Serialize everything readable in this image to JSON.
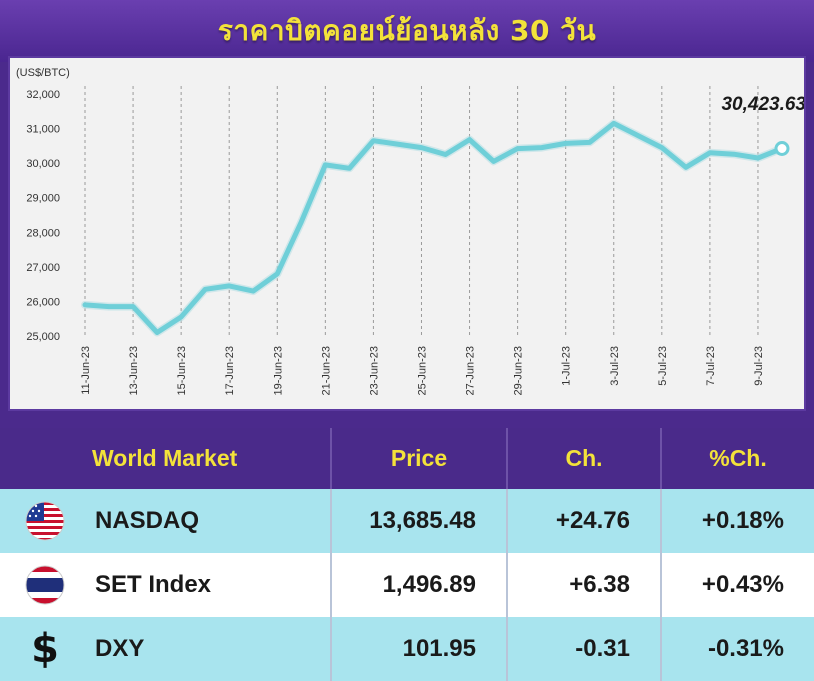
{
  "title": "ราคาบิตคอยน์ย้อนหลัง 30 วัน",
  "chart_data": {
    "type": "line",
    "unit_label": "(US$/BTC)",
    "x": [
      "11-Jun-23",
      "12-Jun-23",
      "13-Jun-23",
      "14-Jun-23",
      "15-Jun-23",
      "16-Jun-23",
      "17-Jun-23",
      "18-Jun-23",
      "19-Jun-23",
      "20-Jun-23",
      "21-Jun-23",
      "22-Jun-23",
      "23-Jun-23",
      "24-Jun-23",
      "25-Jun-23",
      "26-Jun-23",
      "27-Jun-23",
      "28-Jun-23",
      "29-Jun-23",
      "30-Jun-23",
      "1-Jul-23",
      "2-Jul-23",
      "3-Jul-23",
      "4-Jul-23",
      "5-Jul-23",
      "6-Jul-23",
      "7-Jul-23",
      "8-Jul-23",
      "9-Jul-23",
      "10-Jul-23"
    ],
    "x_tick_labels": [
      "11-Jun-23",
      "13-Jun-23",
      "15-Jun-23",
      "17-Jun-23",
      "19-Jun-23",
      "21-Jun-23",
      "23-Jun-23",
      "25-Jun-23",
      "27-Jun-23",
      "29-Jun-23",
      "1-Jul-23",
      "3-Jul-23",
      "5-Jul-23",
      "7-Jul-23",
      "9-Jul-23"
    ],
    "y": [
      25900,
      25850,
      25850,
      25100,
      25550,
      26350,
      26450,
      26300,
      26800,
      28300,
      29950,
      29850,
      30650,
      30550,
      30450,
      30250,
      30680,
      30050,
      30420,
      30450,
      30570,
      30600,
      31150,
      30800,
      30450,
      29880,
      30300,
      30260,
      30150,
      30423.63
    ],
    "ylim": [
      25000,
      32000
    ],
    "yticks": [
      25000,
      26000,
      27000,
      28000,
      29000,
      30000,
      31000,
      32000
    ],
    "ytick_labels": [
      "25,000",
      "26,000",
      "27,000",
      "28,000",
      "29,000",
      "30,000",
      "31,000",
      "32,000"
    ],
    "last_value_label": "30,423.63",
    "line_color": "#6fcfd8",
    "grid": "vertical-dashed"
  },
  "table": {
    "headers": [
      "World Market",
      "Price",
      "Ch.",
      "%Ch."
    ],
    "rows": [
      {
        "icon": "us-flag-icon",
        "name": "NASDAQ",
        "price": "13,685.48",
        "ch": "+24.76",
        "pch": "+0.18%"
      },
      {
        "icon": "thai-flag-icon",
        "name": "SET Index",
        "price": "1,496.89",
        "ch": "+6.38",
        "pch": "+0.43%"
      },
      {
        "icon": "dollar-icon",
        "icon_glyph": "$",
        "name": "DXY",
        "price": "101.95",
        "ch": "-0.31",
        "pch": "-0.31%"
      }
    ]
  },
  "colors": {
    "header_bg": "#4a2a8a",
    "header_text": "#f3e23a",
    "row_alt_bg": "#a8e4ee",
    "row_bg": "#ffffff"
  }
}
